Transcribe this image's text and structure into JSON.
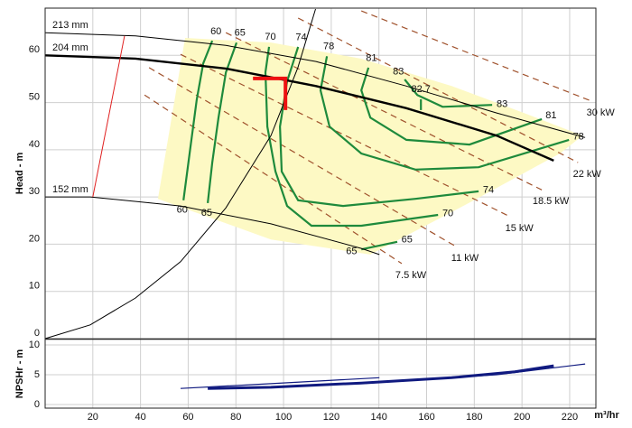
{
  "chart_data": [
    {
      "type": "line",
      "ylabel": "Head - m",
      "xlim": [
        0,
        231
      ],
      "ylim": [
        0,
        70
      ],
      "yticks": [
        0,
        10,
        20,
        30,
        40,
        50,
        60
      ],
      "grid": true,
      "region": {
        "color": "#fdf9c4",
        "x": [
          58.7,
          94.7,
          132.6,
          170.5,
          200.8,
          225.4,
          215.9,
          179.9,
          136.4,
          94.7,
          47.3
        ],
        "values": [
          63.7,
          62.7,
          59.3,
          53.5,
          47.8,
          43,
          39.2,
          29.3,
          17.8,
          21,
          29.6
        ]
      },
      "power": [
        {
          "name": "30 kW",
          "color": "#a0522d",
          "x": [
            132.6,
            229.2
          ],
          "values": [
            69.4,
            50.3
          ]
        },
        {
          "name": "22 kW",
          "color": "#a0522d",
          "x": [
            106.1,
            223.5
          ],
          "values": [
            67.9,
            37.3
          ]
        },
        {
          "name": "18.5 kW",
          "color": "#a0522d",
          "x": [
            75.8,
            208.3
          ],
          "values": [
            64.8,
            31.5
          ]
        },
        {
          "name": "15 kW",
          "color": "#a0522d",
          "x": [
            56.8,
            195.1
          ],
          "values": [
            60.2,
            25.8
          ]
        },
        {
          "name": "11 kW",
          "color": "#a0522d",
          "x": [
            43.6,
            172.3
          ],
          "values": [
            57.4,
            19.5
          ]
        },
        {
          "name": "7.5 kW",
          "color": "#a0522d",
          "x": [
            41.7,
            149.6
          ],
          "values": [
            51.6,
            15.9
          ]
        }
      ],
      "efficiency": [
        {
          "name": "60",
          "color": "#1e8a3c",
          "x": [
            70.1,
            66.3,
            63.6,
            60.6,
            58
          ],
          "values": [
            63.1,
            58.3,
            50.6,
            39.2,
            29.3
          ]
        },
        {
          "name": "65",
          "color": "#1e8a3c",
          "x": [
            80.3,
            75.8,
            72.7,
            70.1,
            68.2
          ],
          "values": [
            62.7,
            56.4,
            46.8,
            37.3,
            28.7
          ]
        },
        {
          "name": "65",
          "color": "#1e8a3c",
          "x": [
            132.6,
            147.7
          ],
          "values": [
            18.9,
            20.5
          ]
        },
        {
          "name": "70",
          "color": "#1e8a3c",
          "x": [
            93.9,
            92.4,
            93.2,
            96.6,
            101.5,
            111.7,
            132.6,
            164.8
          ],
          "values": [
            61.8,
            56.4,
            44.9,
            35.4,
            28.1,
            23.9,
            23.9,
            26.2
          ]
        },
        {
          "name": "74",
          "color": "#1e8a3c",
          "x": [
            106.1,
            101.5,
            98.5,
            99.2,
            106.1,
            125,
            155.3,
            181.8
          ],
          "values": [
            61.8,
            54.5,
            44.9,
            35.4,
            29.3,
            28.1,
            29.6,
            31.2
          ]
        },
        {
          "name": "78",
          "color": "#1e8a3c",
          "x": [
            118.2,
            115.5,
            119.3,
            132.6,
            155.3,
            181.8,
            219.7
          ],
          "values": [
            59.8,
            52.6,
            44.9,
            39.2,
            35.8,
            36.3,
            42.1
          ]
        },
        {
          "name": "81",
          "color": "#1e8a3c",
          "x": [
            135.6,
            132.6,
            136.4,
            151.5,
            178,
            208.3
          ],
          "values": [
            57.4,
            52.6,
            46.8,
            42.1,
            41.1,
            46.5
          ]
        },
        {
          "name": "83",
          "color": "#1e8a3c",
          "x": [
            150.8,
            156.1,
            166.7,
            187.5
          ],
          "values": [
            54.9,
            51.6,
            49.1,
            49.5
          ]
        },
        {
          "name": "82.7",
          "color": "#1e8a3c",
          "x": [
            157.6,
            157.6
          ],
          "values": [
            50.7,
            48.4
          ]
        }
      ],
      "impellers": [
        {
          "name": "213 mm",
          "color": "#000000",
          "x": [
            0,
            37.9,
            75.8,
            113.6,
            151.5,
            189.4,
            226.5
          ],
          "values": [
            64.8,
            64.1,
            62.1,
            58.7,
            53.5,
            47.8,
            42.6
          ]
        },
        {
          "name": "204 mm",
          "color": "#000000",
          "x": [
            0,
            37.9,
            75.8,
            113.6,
            151.5,
            189.4,
            213.3
          ],
          "values": [
            60,
            59.3,
            57.2,
            53.5,
            48.8,
            43,
            37.7
          ]
        },
        {
          "name": "152 mm",
          "color": "#000000",
          "x": [
            0,
            18.9,
            56.8,
            94.7,
            132.6,
            140.2
          ],
          "values": [
            30,
            30,
            28.1,
            24.3,
            19.1,
            17.8
          ]
        }
      ],
      "system_curve": {
        "color": "#000000",
        "x": [
          0,
          18.9,
          37.9,
          56.8,
          75.8,
          94.7,
          106,
          113.4
        ],
        "values": [
          0,
          2.9,
          8.6,
          16.3,
          27.7,
          43,
          57.4,
          69.8
        ]
      },
      "red_line": {
        "color": "#e02020",
        "x": [
          20,
          33.3
        ],
        "values": [
          30,
          64.1
        ]
      },
      "duty_point": {
        "color": "#ee1111",
        "x": 100.8,
        "y": 55.1
      }
    },
    {
      "type": "line",
      "ylabel": "NPSHr - m",
      "xlabel": "m³/hr",
      "xlim": [
        0,
        231
      ],
      "ylim": [
        -0.6,
        10.9
      ],
      "xticks": [
        20,
        40,
        60,
        80,
        100,
        120,
        140,
        160,
        180,
        200,
        220
      ],
      "yticks": [
        0,
        5,
        10
      ],
      "grid": true,
      "series": [
        {
          "color": "#101a80",
          "width": 1.2,
          "x": [
            56.8,
            94.7,
            140.2
          ],
          "values": [
            2.7,
            3.5,
            4.5
          ]
        },
        {
          "color": "#101a80",
          "width": 1.2,
          "x": [
            79.5,
            132.6,
            189.4,
            226.5
          ],
          "values": [
            2.7,
            3.5,
            5,
            6.8
          ]
        },
        {
          "color": "#101a80",
          "width": 3,
          "x": [
            68.2,
            94.7,
            132.6,
            170.5,
            197,
            213.3
          ],
          "values": [
            2.7,
            2.9,
            3.6,
            4.5,
            5.5,
            6.5
          ]
        }
      ]
    }
  ]
}
